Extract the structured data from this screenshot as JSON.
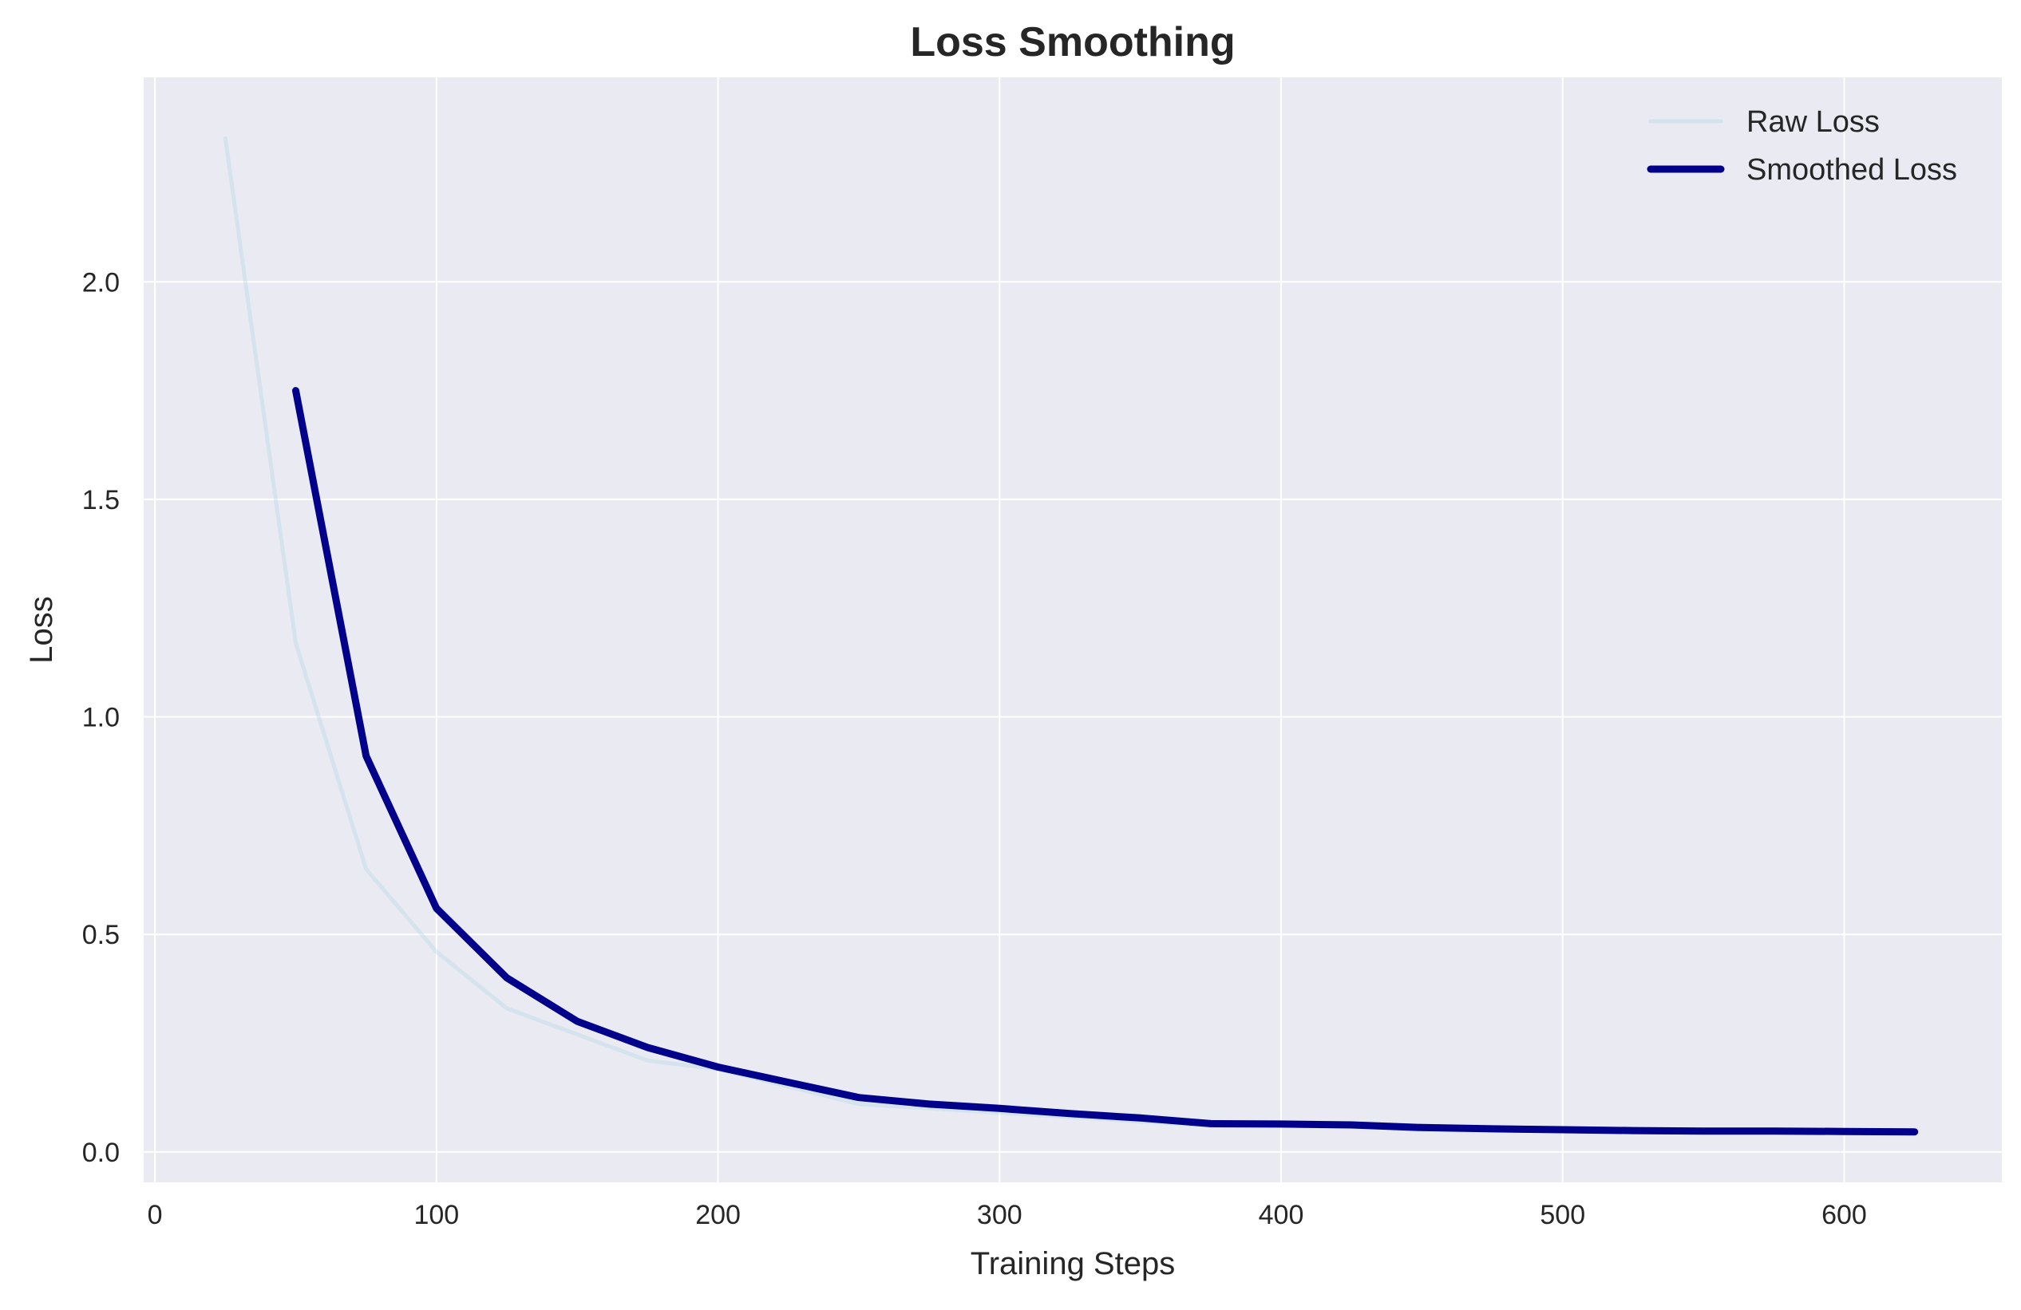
{
  "chart_data": {
    "type": "line",
    "title": "Loss Smoothing",
    "xlabel": "Training Steps",
    "ylabel": "Loss",
    "xlim": [
      -4,
      656
    ],
    "ylim": [
      -0.07,
      2.47
    ],
    "xticks": [
      0,
      100,
      200,
      300,
      400,
      500,
      600
    ],
    "xtick_labels": [
      "0",
      "100",
      "200",
      "300",
      "400",
      "500",
      "600"
    ],
    "yticks": [
      0.0,
      0.5,
      1.0,
      1.5,
      2.0
    ],
    "ytick_labels": [
      "0.0",
      "0.5",
      "1.0",
      "1.5",
      "2.0"
    ],
    "grid": true,
    "legend_position": "top-right",
    "background_color": "#eaeaf2",
    "series": [
      {
        "name": "Raw Loss",
        "color": "#add8e6",
        "opacity": 0.35,
        "x": [
          25,
          50,
          75,
          100,
          125,
          150,
          175,
          200,
          225,
          250,
          275,
          300,
          325,
          350,
          375,
          400,
          425,
          450,
          475,
          500,
          525,
          550,
          575,
          600,
          625
        ],
        "y": [
          2.33,
          1.17,
          0.65,
          0.46,
          0.33,
          0.27,
          0.21,
          0.19,
          0.15,
          0.11,
          0.1,
          0.09,
          0.08,
          0.07,
          0.06,
          0.06,
          0.06,
          0.05,
          0.05,
          0.05,
          0.045,
          0.045,
          0.045,
          0.045,
          0.045
        ]
      },
      {
        "name": "Smoothed Loss",
        "color": "#00008b",
        "opacity": 1,
        "x": [
          50,
          75,
          100,
          125,
          150,
          175,
          200,
          225,
          250,
          275,
          300,
          325,
          350,
          375,
          400,
          425,
          450,
          475,
          500,
          525,
          550,
          575,
          600,
          625
        ],
        "y": [
          1.75,
          0.91,
          0.56,
          0.4,
          0.3,
          0.24,
          0.195,
          0.16,
          0.125,
          0.11,
          0.1,
          0.088,
          0.078,
          0.065,
          0.064,
          0.062,
          0.056,
          0.053,
          0.051,
          0.049,
          0.048,
          0.048,
          0.047,
          0.046
        ]
      }
    ]
  }
}
